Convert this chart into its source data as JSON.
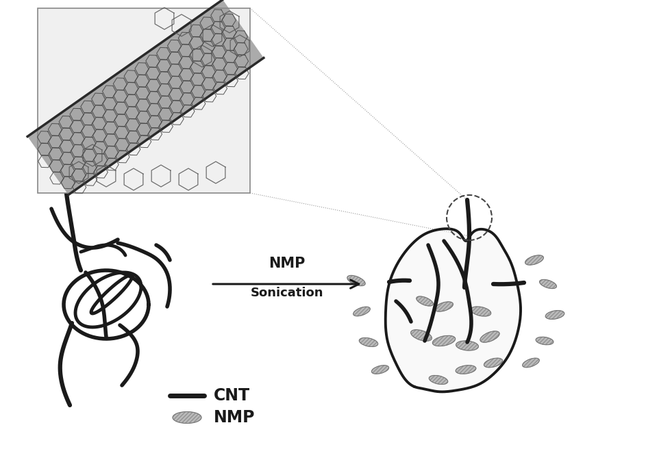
{
  "background_color": "#ffffff",
  "cnt_color": "#1a1a1a",
  "cnt_lw": 4.0,
  "nmp_face_color": "#b0b0b0",
  "nmp_edge_color": "#666666",
  "arrow_color": "#1a1a1a",
  "arrow_text1": "NMP",
  "arrow_text2": "Sonication",
  "legend_cnt_label": "CNT",
  "legend_nmp_label": "NMP",
  "dashed_circle_color": "#444444",
  "box_edge_color": "#888888",
  "dotted_line_color": "#999999",
  "tube_dark": "#2a2a2a",
  "tube_mid": "#555555",
  "tube_light": "#999999",
  "hex_color": "#444444"
}
